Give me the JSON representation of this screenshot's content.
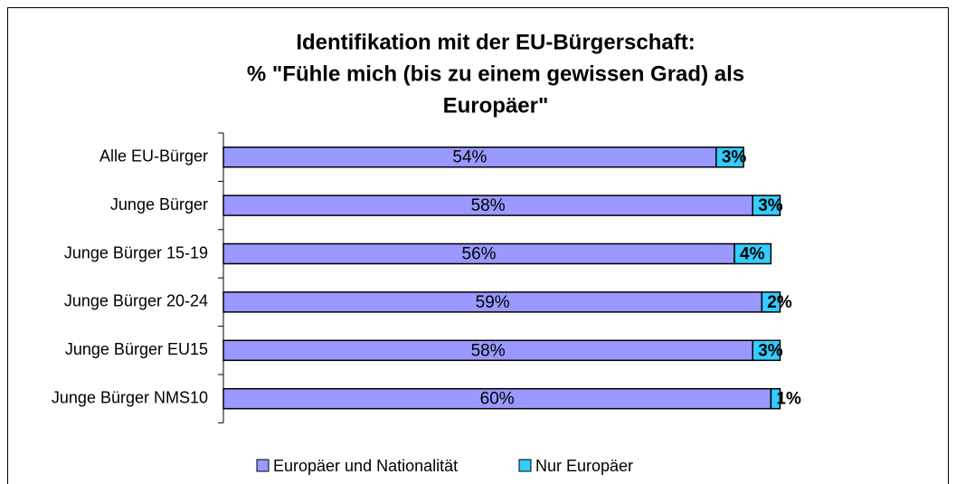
{
  "chart_data": {
    "type": "bar",
    "orientation": "horizontal",
    "stacked": true,
    "title": [
      "Identifikation mit der EU-Bürgerschaft:",
      "% \"Fühle mich (bis zu einem gewissen Grad) als",
      "Europäer\""
    ],
    "categories": [
      "Alle EU-Bürger",
      "Junge Bürger",
      "Junge Bürger 15-19",
      "Junge Bürger 20-24",
      "Junge Bürger EU15",
      "Junge Bürger NMS10"
    ],
    "series": [
      {
        "name": "Europäer und Nationalität",
        "color": "#9999ff",
        "values": [
          54,
          58,
          56,
          59,
          58,
          60
        ],
        "value_labels": [
          "54%",
          "58%",
          "56%",
          "59%",
          "58%",
          "60%"
        ]
      },
      {
        "name": "Nur Europäer",
        "color": "#33ccff",
        "values": [
          3,
          3,
          4,
          2,
          3,
          1
        ],
        "value_labels": [
          "3%",
          "3%",
          "4%",
          "2%",
          "3%",
          "1%"
        ]
      }
    ],
    "legend": "bottom"
  }
}
